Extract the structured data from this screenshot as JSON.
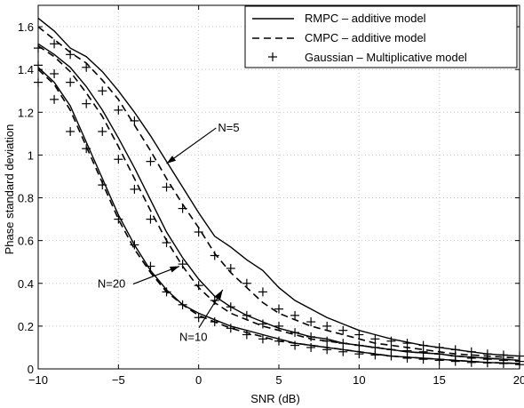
{
  "chart_data": {
    "type": "line",
    "xlabel": "SNR (dB)",
    "ylabel": "Phase standard deviation",
    "xlim": [
      -10,
      20
    ],
    "ylim": [
      0,
      1.7
    ],
    "xticks": [
      "−10",
      "−5",
      "0",
      "5",
      "10",
      "15",
      "20"
    ],
    "xtick_values": [
      -10,
      -5,
      0,
      5,
      10,
      15,
      20
    ],
    "yticks": [
      "0",
      "0.2",
      "0.4",
      "0.6",
      "0.8",
      "1",
      "1.2",
      "1.4",
      "1.6"
    ],
    "ytick_values": [
      0,
      0.2,
      0.4,
      0.6,
      0.8,
      1,
      1.2,
      1.4,
      1.6
    ],
    "grid": true,
    "legend_position": "top-right",
    "legend": [
      {
        "label": "RMPC – additive model",
        "style": "solid"
      },
      {
        "label": "CMPC – additive model",
        "style": "dashed"
      },
      {
        "label": "Gaussian – Multiplicative model",
        "style": "plus"
      }
    ],
    "annotations": [
      {
        "text": "N=5",
        "arrow_to": [
          -2,
          0.96
        ],
        "text_at": [
          1.2,
          1.11
        ]
      },
      {
        "text": "N=20",
        "arrow_to": [
          -1.2,
          0.48
        ],
        "text_at": [
          -6.3,
          0.38
        ]
      },
      {
        "text": "N=10",
        "arrow_to": [
          1.5,
          0.37
        ],
        "text_at": [
          -1.2,
          0.13
        ]
      }
    ],
    "x": [
      -10,
      -9,
      -8,
      -7,
      -6,
      -5,
      -4,
      -3,
      -2,
      -1,
      0,
      1,
      2,
      3,
      4,
      5,
      6,
      7,
      8,
      9,
      10,
      11,
      12,
      13,
      14,
      15,
      16,
      17,
      18,
      19,
      20
    ],
    "series": [
      {
        "group": "N=5",
        "style": "solid",
        "values": [
          1.64,
          1.58,
          1.5,
          1.46,
          1.39,
          1.3,
          1.2,
          1.09,
          0.97,
          0.85,
          0.73,
          0.62,
          0.57,
          0.51,
          0.46,
          0.38,
          0.32,
          0.28,
          0.24,
          0.21,
          0.18,
          0.16,
          0.14,
          0.125,
          0.11,
          0.1,
          0.09,
          0.08,
          0.07,
          0.065,
          0.06
        ]
      },
      {
        "group": "N=5",
        "style": "dashed",
        "values": [
          1.6,
          1.54,
          1.48,
          1.43,
          1.35,
          1.26,
          1.14,
          1.02,
          0.89,
          0.77,
          0.66,
          0.54,
          0.45,
          0.38,
          0.31,
          0.26,
          0.23,
          0.2,
          0.18,
          0.16,
          0.14,
          0.12,
          0.11,
          0.1,
          0.09,
          0.08,
          0.07,
          0.065,
          0.06,
          0.055,
          0.05
        ]
      },
      {
        "group": "N=5",
        "style": "plus",
        "values": [
          1.5,
          1.52,
          1.47,
          1.41,
          1.3,
          1.21,
          1.16,
          0.97,
          0.85,
          0.75,
          0.64,
          0.53,
          0.47,
          0.4,
          0.36,
          0.28,
          0.25,
          0.22,
          0.2,
          0.18,
          0.16,
          0.14,
          0.13,
          0.12,
          0.11,
          0.1,
          0.09,
          0.08,
          0.07,
          0.065,
          0.06
        ]
      },
      {
        "group": "N=10",
        "style": "solid",
        "values": [
          1.52,
          1.47,
          1.41,
          1.32,
          1.21,
          1.08,
          0.94,
          0.79,
          0.64,
          0.52,
          0.42,
          0.34,
          0.29,
          0.25,
          0.22,
          0.19,
          0.17,
          0.15,
          0.14,
          0.12,
          0.11,
          0.1,
          0.09,
          0.08,
          0.075,
          0.07,
          0.06,
          0.055,
          0.05,
          0.045,
          0.04
        ]
      },
      {
        "group": "N=10",
        "style": "dashed",
        "values": [
          1.51,
          1.46,
          1.39,
          1.29,
          1.18,
          1.04,
          0.89,
          0.74,
          0.6,
          0.48,
          0.38,
          0.31,
          0.26,
          0.23,
          0.2,
          0.18,
          0.16,
          0.14,
          0.13,
          0.12,
          0.11,
          0.1,
          0.09,
          0.08,
          0.075,
          0.07,
          0.06,
          0.055,
          0.05,
          0.045,
          0.04
        ]
      },
      {
        "group": "N=10",
        "style": "plus",
        "values": [
          1.42,
          1.38,
          1.34,
          1.24,
          1.11,
          0.98,
          0.84,
          0.7,
          0.59,
          0.49,
          0.39,
          0.32,
          0.29,
          0.25,
          0.21,
          0.2,
          0.17,
          0.15,
          0.13,
          0.12,
          0.11,
          0.1,
          0.09,
          0.085,
          0.08,
          0.07,
          0.06,
          0.05,
          0.045,
          0.04,
          0.035
        ]
      },
      {
        "group": "N=20",
        "style": "solid",
        "values": [
          1.41,
          1.34,
          1.23,
          1.06,
          0.89,
          0.72,
          0.58,
          0.46,
          0.37,
          0.3,
          0.26,
          0.23,
          0.2,
          0.18,
          0.16,
          0.14,
          0.12,
          0.11,
          0.1,
          0.09,
          0.08,
          0.07,
          0.06,
          0.055,
          0.05,
          0.045,
          0.04,
          0.035,
          0.03,
          0.028,
          0.025
        ]
      },
      {
        "group": "N=20",
        "style": "dashed",
        "values": [
          1.4,
          1.33,
          1.21,
          1.04,
          0.87,
          0.7,
          0.56,
          0.45,
          0.36,
          0.3,
          0.25,
          0.22,
          0.19,
          0.17,
          0.15,
          0.13,
          0.12,
          0.11,
          0.1,
          0.09,
          0.08,
          0.07,
          0.06,
          0.055,
          0.05,
          0.045,
          0.04,
          0.035,
          0.03,
          0.028,
          0.025
        ]
      },
      {
        "group": "N=20",
        "style": "plus",
        "values": [
          1.34,
          1.26,
          1.11,
          1.03,
          0.86,
          0.7,
          0.58,
          0.48,
          0.36,
          0.3,
          0.24,
          0.22,
          0.19,
          0.16,
          0.14,
          0.13,
          0.11,
          0.1,
          0.09,
          0.08,
          0.07,
          0.065,
          0.06,
          0.05,
          0.045,
          0.04,
          0.035,
          0.03,
          0.028,
          0.025,
          0.02
        ]
      }
    ]
  }
}
